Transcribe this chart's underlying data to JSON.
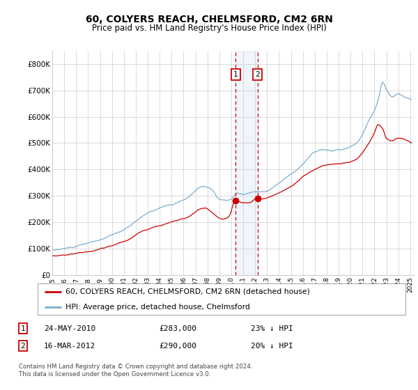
{
  "title": "60, COLYERS REACH, CHELMSFORD, CM2 6RN",
  "subtitle": "Price paid vs. HM Land Registry's House Price Index (HPI)",
  "ylim": [
    0,
    850000
  ],
  "yticks": [
    0,
    100000,
    200000,
    300000,
    400000,
    500000,
    600000,
    700000,
    800000
  ],
  "ytick_labels": [
    "£0",
    "£100K",
    "£200K",
    "£300K",
    "£400K",
    "£500K",
    "£600K",
    "£700K",
    "£800K"
  ],
  "sale1_year": 2010.38,
  "sale1_price": 283000,
  "sale2_year": 2012.21,
  "sale2_price": 290000,
  "red_line_color": "#cc0000",
  "blue_line_color": "#7aadcc",
  "legend_red_label": "60, COLYERS REACH, CHELMSFORD, CM2 6RN (detached house)",
  "legend_blue_label": "HPI: Average price, detached house, Chelmsford",
  "footer": "Contains HM Land Registry data © Crown copyright and database right 2024.\nThis data is licensed under the Open Government Licence v3.0.",
  "bg_color": "#ffffff",
  "grid_color": "#cccccc"
}
